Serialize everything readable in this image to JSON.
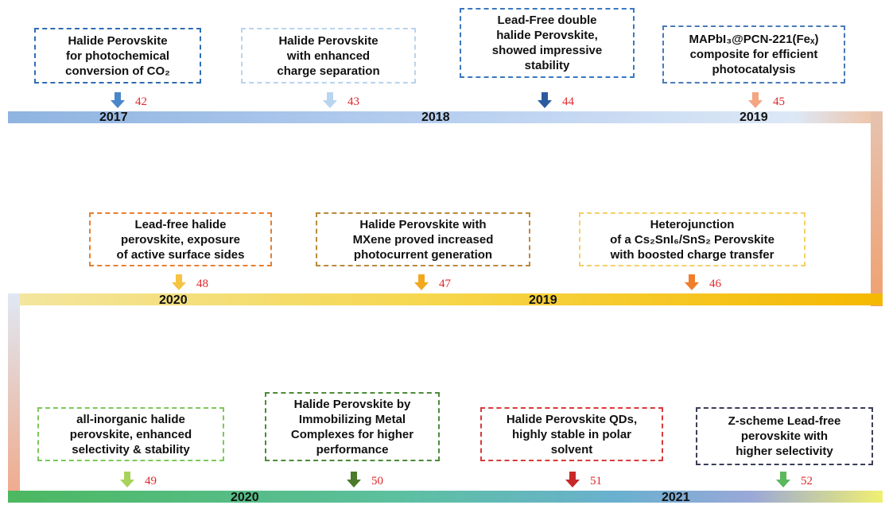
{
  "rows": [
    {
      "years": [
        "2017",
        "2018",
        "2019"
      ],
      "boxes": [
        {
          "lines": [
            "Halide Perovskite",
            "for photochemical",
            "conversion of CO₂"
          ],
          "ref": "42"
        },
        {
          "lines": [
            "Halide Perovskite",
            "with enhanced",
            "charge separation"
          ],
          "ref": "43"
        },
        {
          "lines": [
            "Lead-Free double",
            "halide Perovskite,",
            "showed impressive",
            "stability"
          ],
          "ref": "44"
        },
        {
          "lines": [
            "MAPbI₃@PCN-221(Feₓ)",
            "composite for efficient",
            "photocatalysis"
          ],
          "ref": "45"
        }
      ]
    },
    {
      "years": [
        "2020",
        "2019"
      ],
      "boxes": [
        {
          "lines": [
            "Lead-free halide",
            "perovskite, exposure",
            "of active surface sides"
          ],
          "ref": "48"
        },
        {
          "lines": [
            "Halide Perovskite with",
            "MXene proved increased",
            "photocurrent generation"
          ],
          "ref": "47"
        },
        {
          "lines": [
            "Heterojunction",
            "of a Cs₂SnI₆/SnS₂ Perovskite",
            "with boosted charge transfer"
          ],
          "ref": "46"
        }
      ]
    },
    {
      "years": [
        "2020",
        "2021"
      ],
      "boxes": [
        {
          "lines": [
            "all-inorganic halide",
            "perovskite, enhanced",
            "selectivity & stability"
          ],
          "ref": "49"
        },
        {
          "lines": [
            "Halide Perovskite by",
            "Immobilizing Metal",
            "Complexes for higher",
            "performance"
          ],
          "ref": "50"
        },
        {
          "lines": [
            "Halide Perovskite QDs,",
            "highly stable in polar",
            "solvent"
          ],
          "ref": "51"
        },
        {
          "lines": [
            "Z-scheme Lead-free",
            "perovskite with",
            "higher selectivity"
          ],
          "ref": "52"
        }
      ]
    }
  ]
}
